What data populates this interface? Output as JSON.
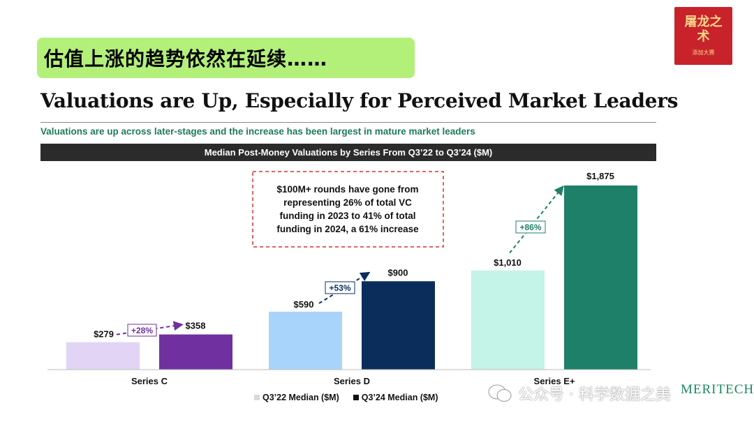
{
  "banner": {
    "text": "估值上涨的趋势依然在延续……"
  },
  "title": "Valuations are Up, Especially for Perceived Market Leaders",
  "subtitle": "Valuations are up across later-stages and the increase has been largest in mature market leaders",
  "logo": {
    "glyph": "屠龙之术",
    "small_text": "添加大赛"
  },
  "callout": {
    "lines": [
      "$100M+ rounds have gone from",
      "representing 26% of total VC",
      "funding in 2023 to 41% of total",
      "funding in 2024, a 61% increase"
    ],
    "border_color": "#d9302c"
  },
  "watermark": {
    "text": "公众号 · 科学数据之美"
  },
  "brand": {
    "text": "MERITECH"
  },
  "colors": {
    "c_q322": "#e2d4f5",
    "c_q324": "#7030a0",
    "d_q322": "#a8d4fb",
    "d_q324": "#0b2d5c",
    "e_q322": "#c4f3e7",
    "e_q324": "#1e8068",
    "text": "#111111"
  },
  "chart_data": {
    "type": "bar",
    "title": "Median Post-Money Valuations by Series From Q3’22 to Q3’24 ($M)",
    "categories": [
      "Series C",
      "Series D",
      "Series E+"
    ],
    "series": [
      {
        "name": "Q3’22 Median ($M)",
        "values": [
          279,
          590,
          1010
        ]
      },
      {
        "name": "Q3’24 Median ($M)",
        "values": [
          358,
          900,
          1875
        ]
      }
    ],
    "value_labels": {
      "Q3’22 Median ($M)": [
        "$279",
        "$590",
        "$1,010"
      ],
      "Q3’24 Median ($M)": [
        "$358",
        "$900",
        "$1,875"
      ]
    },
    "growth_labels": [
      "+28%",
      "+53%",
      "+86%"
    ],
    "ylim": [
      0,
      1875
    ],
    "grid": false,
    "legend": "bottom-center"
  }
}
